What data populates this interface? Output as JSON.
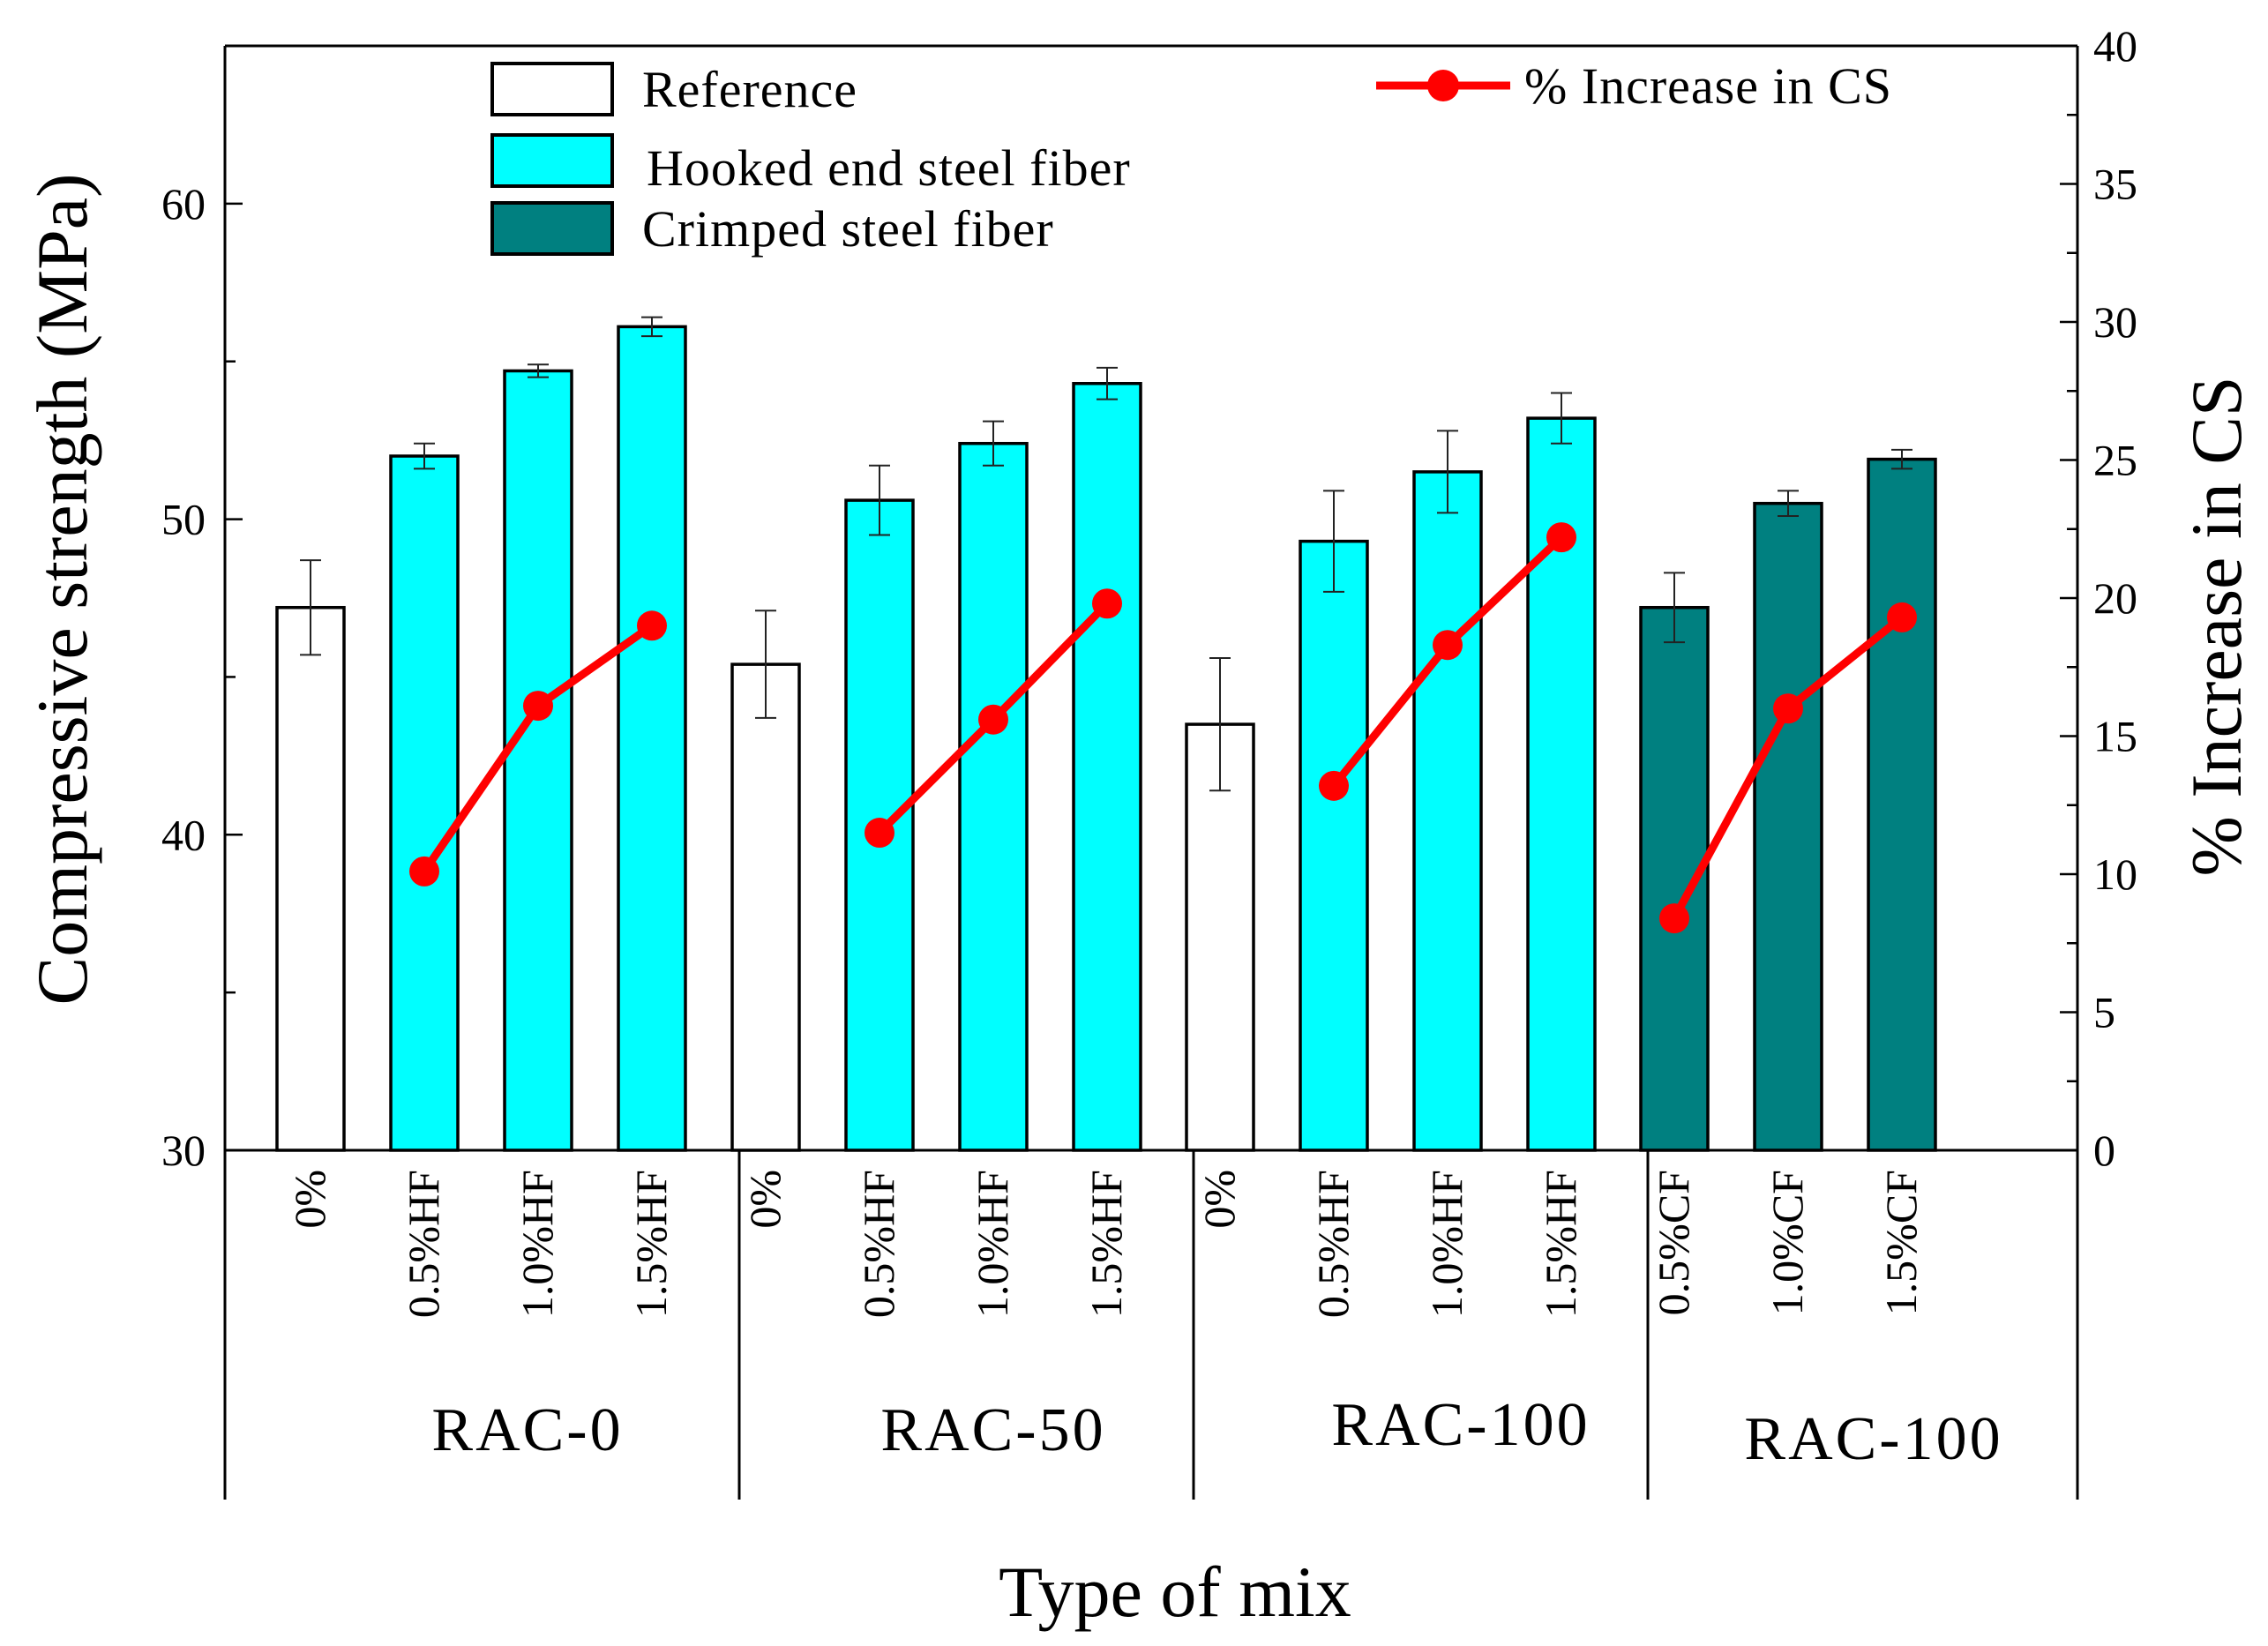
{
  "chart_data": {
    "type": "bar",
    "xlabel": "Type of mix",
    "ylabel": "Compressive strength (MPa)",
    "y2label": "% Increase in CS",
    "ylim": [
      30,
      65
    ],
    "y2lim": [
      0,
      40
    ],
    "yticks": [
      30,
      40,
      50,
      60
    ],
    "y2ticks": [
      0,
      5,
      10,
      15,
      20,
      25,
      30,
      35,
      40
    ],
    "groups": [
      {
        "label": "RAC-0",
        "bars": [
          {
            "category": "0%",
            "type": "Reference",
            "value": 47.2,
            "err": 1.5,
            "pct": null
          },
          {
            "category": "0.5%HF",
            "type": "Hooked end steel fiber",
            "value": 52.0,
            "err": 0.4,
            "pct": 10.1
          },
          {
            "category": "1.0%HF",
            "type": "Hooked end steel fiber",
            "value": 54.7,
            "err": 0.2,
            "pct": 16.1
          },
          {
            "category": "1.5%HF",
            "type": "Hooked end steel fiber",
            "value": 56.1,
            "err": 0.3,
            "pct": 19.0
          }
        ]
      },
      {
        "label": "RAC-50",
        "bars": [
          {
            "category": "0%",
            "type": "Reference",
            "value": 45.4,
            "err": 1.7,
            "pct": null
          },
          {
            "category": "0.5%HF",
            "type": "Hooked end steel fiber",
            "value": 50.6,
            "err": 1.1,
            "pct": 11.5
          },
          {
            "category": "1.0%HF",
            "type": "Hooked end steel fiber",
            "value": 52.4,
            "err": 0.7,
            "pct": 15.6
          },
          {
            "category": "1.5%HF",
            "type": "Hooked end steel fiber",
            "value": 54.3,
            "err": 0.5,
            "pct": 19.8
          }
        ]
      },
      {
        "label": "RAC-100",
        "bars": [
          {
            "category": "0%",
            "type": "Reference",
            "value": 43.5,
            "err": 2.1,
            "pct": null
          },
          {
            "category": "0.5%HF",
            "type": "Hooked end steel fiber",
            "value": 49.3,
            "err": 1.6,
            "pct": 13.2
          },
          {
            "category": "1.0%HF",
            "type": "Hooked end steel fiber",
            "value": 51.5,
            "err": 1.3,
            "pct": 18.3
          },
          {
            "category": "1.5%HF",
            "type": "Hooked end steel fiber",
            "value": 53.2,
            "err": 0.8,
            "pct": 22.2
          }
        ]
      },
      {
        "label": "RAC-100",
        "bars": [
          {
            "category": "0.5%CF",
            "type": "Crimped steel fiber",
            "value": 47.2,
            "err": 1.1,
            "pct": 8.4
          },
          {
            "category": "1.0%CF",
            "type": "Crimped steel fiber",
            "value": 50.5,
            "err": 0.4,
            "pct": 16.0
          },
          {
            "category": "1.5%CF",
            "type": "Crimped steel fiber",
            "value": 51.9,
            "err": 0.3,
            "pct": 19.3
          }
        ]
      }
    ],
    "legend": [
      {
        "label": "Reference",
        "color": "#ffffff",
        "kind": "box"
      },
      {
        "label": "Hooked end steel fiber",
        "color": "#00ffff",
        "kind": "box"
      },
      {
        "label": "Crimped steel fiber",
        "color": "#008080",
        "kind": "box"
      },
      {
        "label": "% Increase in CS",
        "color": "#ff0000",
        "kind": "line"
      }
    ]
  }
}
